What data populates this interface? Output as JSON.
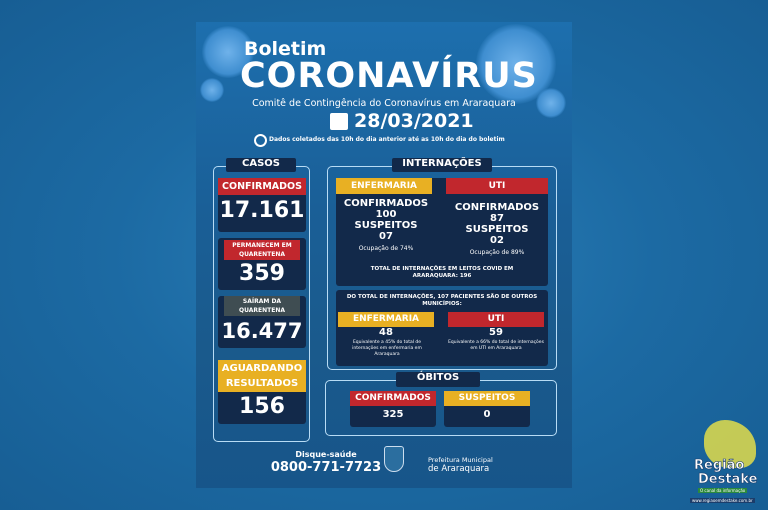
{
  "header": {
    "kicker": "Boletim",
    "title": "CORONAVÍRUS",
    "subtitle": "Comitê de Contingência do Coronavírus em Araraquara",
    "date": "28/03/2021",
    "note": "Dados coletados das 10h do dia anterior até as 10h do dia do boletim"
  },
  "casos": {
    "title": "CASOS",
    "confirmados_label": "CONFIRMADOS",
    "confirmados": "17.161",
    "quarentena_label": "PERMANECEM EM QUARENTENA",
    "quarentena": "359",
    "sairam_label": "SAÍRAM DA QUARENTENA",
    "sairam": "16.477",
    "aguardando_label": "AGUARDANDO RESULTADOS",
    "aguardando": "156"
  },
  "internacoes": {
    "title": "INTERNAÇÕES",
    "enfermaria": {
      "label": "ENFERMARIA",
      "conf_label": "CONFIRMADOS",
      "conf": "100",
      "susp_label": "SUSPEITOS",
      "susp": "07",
      "ocupacao": "Ocupação de 74%"
    },
    "uti": {
      "label": "UTI",
      "conf_label": "CONFIRMADOS",
      "conf": "87",
      "susp_label": "SUSPEITOS",
      "susp": "02",
      "ocupacao": "Ocupação de 89%"
    },
    "total": "TOTAL DE INTERNAÇÕES EM LEITOS COVID EM ARARAQUARA: 196",
    "outros": {
      "heading": "DO TOTAL DE INTERNAÇÕES, 107 PACIENTES SÃO DE OUTROS MUNICÍPIOS:",
      "enfermaria_label": "ENFERMARIA",
      "enfermaria": "48",
      "enfermaria_note": "Equivalente a 45% do total de internações em enfermaria em Araraquara",
      "uti_label": "UTI",
      "uti": "59",
      "uti_note": "Equivalente a 66% do total de internações em UTI em Araraquara"
    }
  },
  "obitos": {
    "title": "ÓBITOS",
    "confirmados_label": "CONFIRMADOS",
    "confirmados": "325",
    "suspeitos_label": "SUSPEITOS",
    "suspeitos": "0"
  },
  "footer": {
    "disque_label": "Disque-saúde",
    "phone": "0800-771-7723",
    "pref_line1": "Prefeitura Municipal",
    "pref_line2": "de Araraquara"
  },
  "watermark": {
    "line1": "Região",
    "line2": "Destake",
    "tagline": "O canal da informação",
    "url": "www.regiaoemdestake.com.br"
  },
  "colors": {
    "red": "#c1272d",
    "yellow": "#e8b023",
    "navy": "#12294a"
  }
}
